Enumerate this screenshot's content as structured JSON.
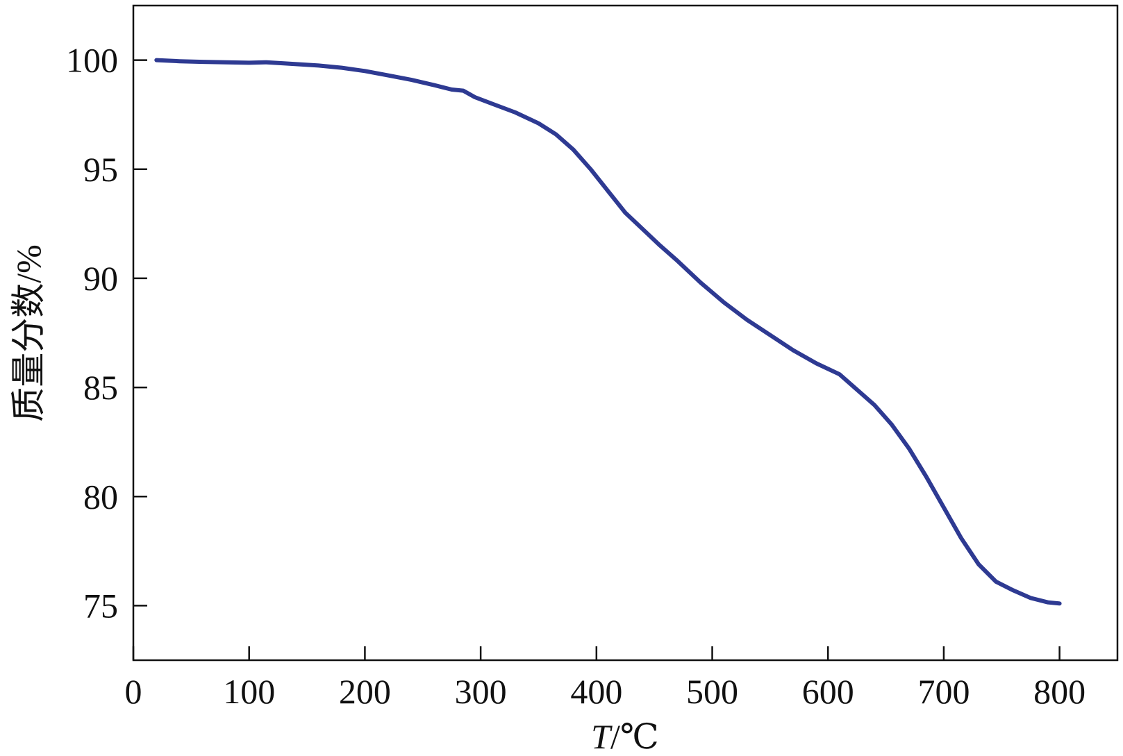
{
  "chart_data": {
    "type": "line",
    "title": "",
    "xlabel": "T/℃",
    "xlabel_var": "T",
    "xlabel_unit": "/℃",
    "ylabel": "质量分数/%",
    "xlim": [
      0,
      850
    ],
    "ylim": [
      72.5,
      102.5
    ],
    "xticks": [
      0,
      100,
      200,
      300,
      400,
      500,
      600,
      700,
      800
    ],
    "yticks": [
      75,
      80,
      85,
      90,
      95,
      100
    ],
    "grid": false,
    "line_color": "#2e3a92",
    "series": [
      {
        "x": [
          20,
          40,
          60,
          80,
          100,
          115,
          130,
          160,
          180,
          200,
          220,
          240,
          260,
          275,
          285,
          295,
          310,
          330,
          350,
          365,
          380,
          395,
          410,
          425,
          435,
          445,
          455,
          470,
          490,
          510,
          530,
          550,
          570,
          590,
          610,
          625,
          640,
          655,
          670,
          685,
          700,
          715,
          730,
          745,
          760,
          775,
          790,
          800
        ],
        "y": [
          100.0,
          99.95,
          99.92,
          99.9,
          99.88,
          99.9,
          99.85,
          99.75,
          99.65,
          99.5,
          99.3,
          99.1,
          98.85,
          98.65,
          98.6,
          98.3,
          98.0,
          97.6,
          97.1,
          96.6,
          95.9,
          95.0,
          94.0,
          93.0,
          92.5,
          92.0,
          91.5,
          90.8,
          89.8,
          88.9,
          88.1,
          87.4,
          86.7,
          86.1,
          85.6,
          84.9,
          84.2,
          83.3,
          82.2,
          80.9,
          79.5,
          78.1,
          76.9,
          76.1,
          75.7,
          75.35,
          75.15,
          75.1
        ]
      }
    ]
  }
}
